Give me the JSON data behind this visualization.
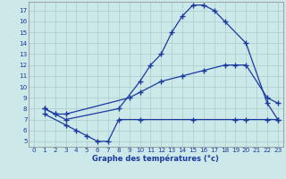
{
  "line1_x": [
    1,
    2,
    3,
    8,
    10,
    11,
    12,
    13,
    14,
    15,
    16,
    17,
    18,
    20,
    22,
    23
  ],
  "line1_y": [
    8,
    7.5,
    7,
    8,
    10.5,
    12,
    13,
    15,
    16.5,
    17.5,
    17.5,
    17,
    16,
    14,
    8.5,
    7
  ],
  "line2_x": [
    1,
    2,
    3,
    9,
    10,
    12,
    14,
    16,
    18,
    19,
    20,
    22,
    23
  ],
  "line2_y": [
    8,
    7.5,
    7.5,
    9,
    9.5,
    10.5,
    11,
    11.5,
    12,
    12,
    12,
    9,
    8.5
  ],
  "line3_x": [
    1,
    3,
    4,
    5,
    6,
    7,
    8,
    10,
    15,
    19,
    20,
    22,
    23
  ],
  "line3_y": [
    7.5,
    6.5,
    6,
    5.5,
    5,
    5,
    7,
    7,
    7,
    7,
    7,
    7,
    7
  ],
  "line_color": "#1a3a9e",
  "bg_color": "#cce8e8",
  "grid_color": "#aacccc",
  "xlabel": "Graphe des températures (°c)",
  "xlim": [
    -0.5,
    23.5
  ],
  "ylim": [
    4.5,
    17.8
  ],
  "xticks": [
    0,
    1,
    2,
    3,
    4,
    5,
    6,
    7,
    8,
    9,
    10,
    11,
    12,
    13,
    14,
    15,
    16,
    17,
    18,
    19,
    20,
    21,
    22,
    23
  ],
  "yticks": [
    5,
    6,
    7,
    8,
    9,
    10,
    11,
    12,
    13,
    14,
    15,
    16,
    17
  ]
}
